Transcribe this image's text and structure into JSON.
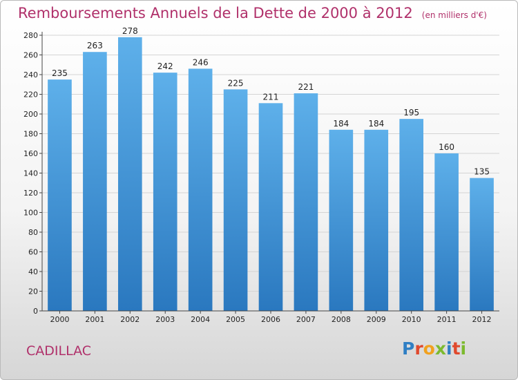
{
  "title": "Remboursements Annuels de la Dette de 2000 à 2012",
  "subtitle": "(en milliers d'€)",
  "city": "CADILLAC",
  "logo": "Proxiti",
  "colors": {
    "title": "#b0306a",
    "bar_top": "#5eb0ea",
    "bar_bottom": "#2a78bf",
    "logo_letters": [
      "#2f7fc4",
      "#e0492d",
      "#f1a11e",
      "#7cba2e",
      "#2f7fc4",
      "#e0492d",
      "#7cba2e"
    ]
  },
  "chart_data": {
    "type": "bar",
    "categories": [
      "2000",
      "2001",
      "2002",
      "2003",
      "2004",
      "2005",
      "2006",
      "2007",
      "2008",
      "2009",
      "2010",
      "2011",
      "2012"
    ],
    "values": [
      235,
      263,
      278,
      242,
      246,
      225,
      211,
      221,
      184,
      184,
      195,
      160,
      135
    ],
    "title": "Remboursements Annuels de la Dette de 2000 à 2012",
    "subtitle": "(en milliers d'€)",
    "xlabel": "",
    "ylabel": "",
    "ylim": [
      0,
      280
    ],
    "yticks": [
      0,
      20,
      40,
      60,
      80,
      100,
      120,
      140,
      160,
      180,
      200,
      220,
      240,
      260,
      280
    ],
    "grid": true,
    "legend": "none"
  }
}
